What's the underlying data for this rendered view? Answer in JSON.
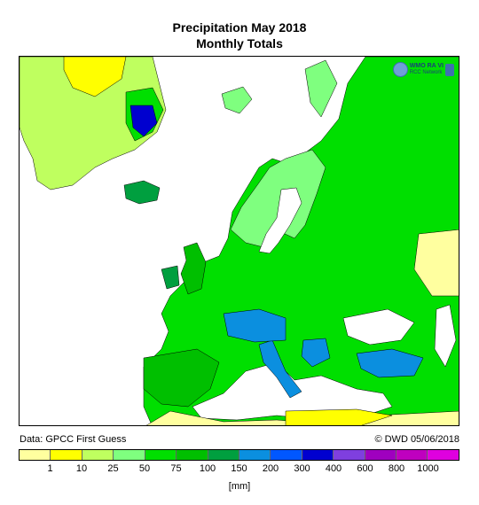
{
  "title": "Precipitation May 2018",
  "subtitle": "Monthly Totals",
  "logo": {
    "line1": "WMO RA VI",
    "line2": "RCC Network"
  },
  "source": "Data: GPCC First Guess",
  "credit": "© DWD 05/06/2018",
  "legend": {
    "unit": "[mm]",
    "ticks": [
      "1",
      "10",
      "25",
      "50",
      "75",
      "100",
      "150",
      "200",
      "300",
      "400",
      "600",
      "800",
      "1000"
    ],
    "colors": [
      "#ffff9f",
      "#ffff00",
      "#bfff5f",
      "#7fff7f",
      "#00df00",
      "#00bf00",
      "#009f3f",
      "#0b8fdf",
      "#0057ff",
      "#0000cf",
      "#7f3fdf",
      "#9f00bf",
      "#bf00bf",
      "#df00df"
    ]
  },
  "map_colors": {
    "sea": "#ffffff",
    "very_dry": "#ffff9f",
    "dry": "#ffff00",
    "light": "#bfff5f",
    "moderate": "#7fff7f",
    "green": "#00df00",
    "dark_green": "#00bf00",
    "teal": "#009f3f",
    "blue": "#0b8fdf",
    "dark_blue": "#0000cf",
    "border": "#000000"
  }
}
